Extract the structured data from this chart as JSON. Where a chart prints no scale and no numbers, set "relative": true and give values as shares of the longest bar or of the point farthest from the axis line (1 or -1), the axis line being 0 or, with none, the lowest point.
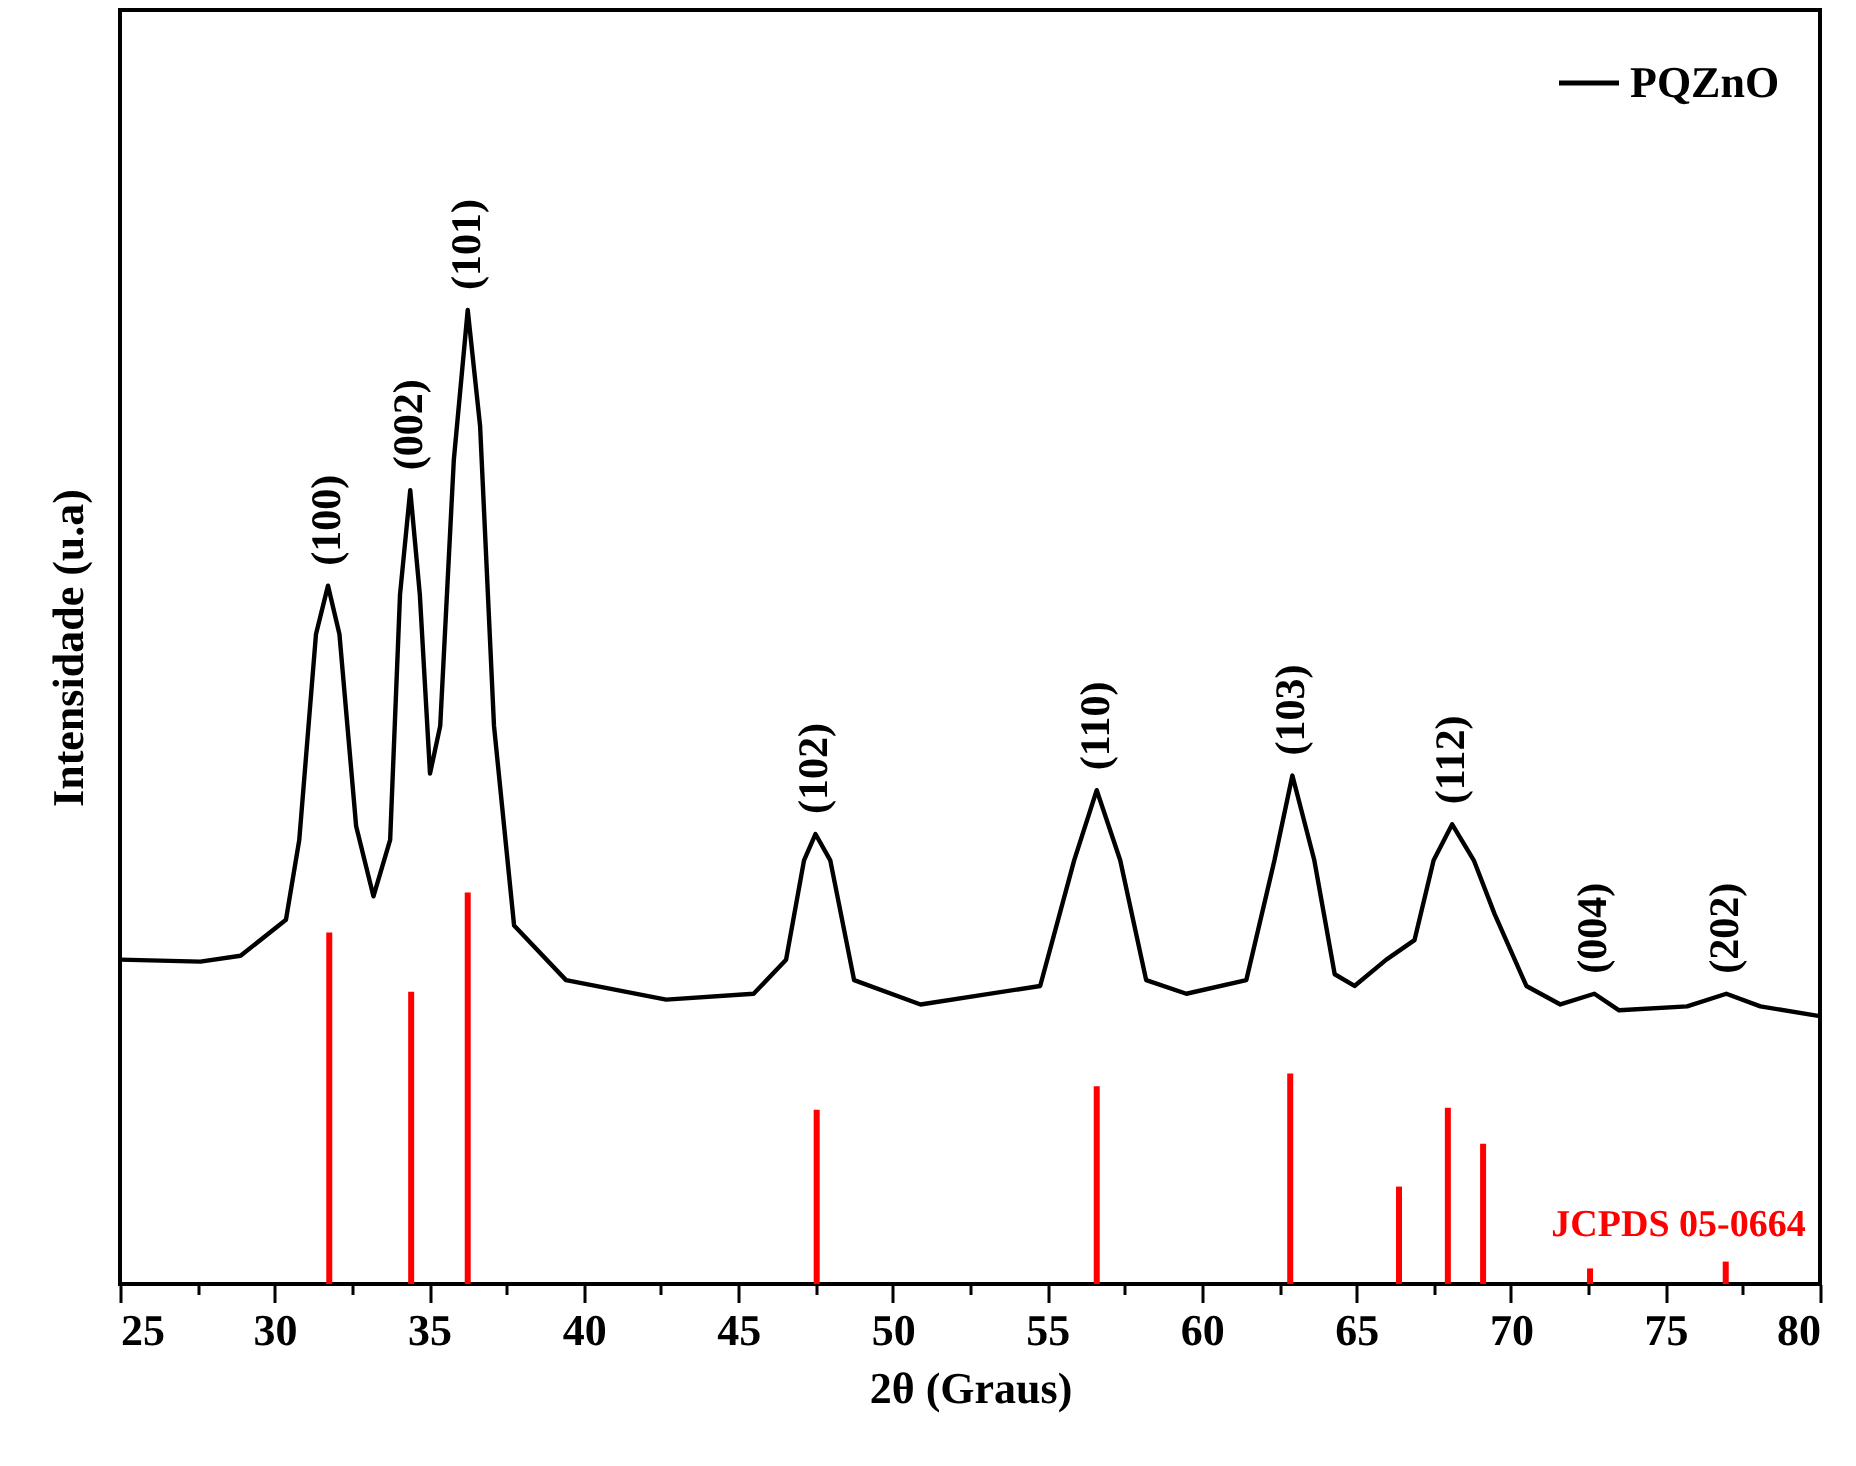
{
  "chart_data": {
    "type": "line",
    "xlabel": "2θ (Graus)",
    "ylabel": "Intensidade (u.a)",
    "relative": true,
    "legend": "top right",
    "grid": false,
    "xlim": [
      25,
      80
    ],
    "xticks": [
      25,
      {
        "value": 27.5,
        "label": null
      },
      30,
      {
        "value": 32.5,
        "label": null
      },
      35,
      {
        "value": 37.5,
        "label": null
      },
      40,
      {
        "value": 42.5,
        "label": null
      },
      45,
      {
        "value": 47.5,
        "label": null
      },
      50,
      {
        "value": 52.5,
        "label": null
      },
      55,
      {
        "value": 57.5,
        "label": null
      },
      60,
      {
        "value": 62.5,
        "label": null
      },
      65,
      {
        "value": 67.5,
        "label": null
      },
      70,
      {
        "value": 72.5,
        "label": null
      },
      75,
      {
        "value": 77.5,
        "label": null
      },
      80
    ],
    "series": [
      {
        "name": "PQZnO",
        "color": "#000000",
        "x": [
          25,
          27.6,
          28.9,
          30.37,
          30.8,
          31.34,
          31.73,
          32.1,
          32.64,
          33.2,
          33.74,
          34.06,
          34.39,
          34.7,
          35.03,
          35.36,
          35.8,
          36.25,
          36.65,
          37.1,
          37.75,
          39.43,
          42.67,
          45.5,
          46.55,
          47.13,
          47.5,
          47.98,
          48.75,
          50.9,
          54.77,
          55.87,
          56.6,
          57.36,
          58.2,
          59.5,
          61.44,
          62.35,
          62.93,
          63.64,
          64.3,
          64.94,
          65.97,
          66.88,
          67.5,
          68.1,
          68.8,
          69.47,
          70.5,
          71.6,
          72.7,
          73.5,
          75.7,
          76.97,
          78.07,
          80
        ],
        "values": [
          0.333,
          0.331,
          0.337,
          0.374,
          0.456,
          0.667,
          0.717,
          0.667,
          0.47,
          0.398,
          0.456,
          0.708,
          0.815,
          0.708,
          0.524,
          0.573,
          0.846,
          1,
          0.881,
          0.573,
          0.368,
          0.312,
          0.292,
          0.298,
          0.333,
          0.435,
          0.462,
          0.435,
          0.312,
          0.287,
          0.306,
          0.435,
          0.507,
          0.435,
          0.312,
          0.298,
          0.312,
          0.435,
          0.522,
          0.435,
          0.318,
          0.306,
          0.333,
          0.353,
          0.435,
          0.472,
          0.435,
          0.38,
          0.306,
          0.287,
          0.298,
          0.281,
          0.285,
          0.298,
          0.285,
          0.275
        ]
      },
      {
        "name": "JCPDS 05-0664",
        "color": "#ff0000",
        "type": "bar",
        "x": [
          31.77,
          34.42,
          36.25,
          47.54,
          56.6,
          62.86,
          66.38,
          67.96,
          69.1,
          72.56,
          76.95
        ],
        "values": [
          0.361,
          0.3,
          0.402,
          0.179,
          0.203,
          0.216,
          0.1,
          0.181,
          0.144,
          0.016,
          0.023
        ]
      }
    ],
    "annotations": [
      {
        "text": "(100)",
        "x": 31.73,
        "y": 0.717
      },
      {
        "text": "(002)",
        "x": 34.39,
        "y": 0.815
      },
      {
        "text": "(101)",
        "x": 36.25,
        "y": 1
      },
      {
        "text": "(102)",
        "x": 47.5,
        "y": 0.462
      },
      {
        "text": "(110)",
        "x": 56.6,
        "y": 0.507
      },
      {
        "text": "(103)",
        "x": 62.93,
        "y": 0.522
      },
      {
        "text": "(112)",
        "x": 68.1,
        "y": 0.472
      },
      {
        "text": "(004)",
        "x": 72.7,
        "y": 0.298
      },
      {
        "text": "(202)",
        "x": 76.97,
        "y": 0.298
      }
    ]
  }
}
